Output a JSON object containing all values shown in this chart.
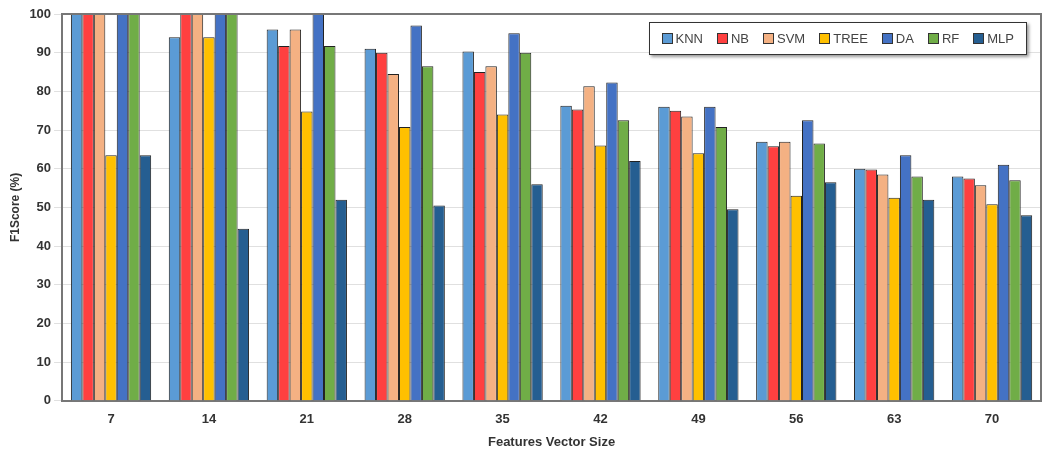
{
  "chart_data": {
    "type": "bar",
    "xlabel": "Features Vector Size",
    "ylabel": "F1Score (%)",
    "categories": [
      "7",
      "14",
      "21",
      "28",
      "35",
      "42",
      "49",
      "56",
      "63",
      "70"
    ],
    "ylim": [
      0,
      100
    ],
    "yticks": [
      0,
      10,
      20,
      30,
      40,
      50,
      60,
      70,
      80,
      90,
      100
    ],
    "grid": "y",
    "legend": "top right",
    "series": [
      {
        "name": "KNN",
        "color": "#5b9bd5",
        "values": [
          100,
          94,
          96,
          91,
          90.3,
          76.3,
          76,
          67,
          60,
          58
        ]
      },
      {
        "name": "NB",
        "color": "#ff4040",
        "values": [
          100,
          100,
          91.7,
          90,
          85,
          75.3,
          75,
          65.8,
          59.8,
          57.5
        ]
      },
      {
        "name": "SVM",
        "color": "#f4b183",
        "values": [
          100,
          100,
          96,
          84.5,
          86.5,
          81.3,
          73.5,
          67,
          58.5,
          55.7
        ]
      },
      {
        "name": "TREE",
        "color": "#ffc000",
        "values": [
          63.5,
          94,
          74.8,
          70.8,
          74,
          66,
          64,
          53,
          52.5,
          50.8
        ]
      },
      {
        "name": "DA",
        "color": "#4472c4",
        "values": [
          100,
          100,
          100,
          97,
          95,
          82.3,
          76,
          72.5,
          63.5,
          61
        ]
      },
      {
        "name": "RF",
        "color": "#70ad47",
        "values": [
          100,
          100,
          91.7,
          86.5,
          90,
          72.5,
          70.8,
          66.5,
          58,
          57
        ]
      },
      {
        "name": "MLP",
        "color": "#255e91",
        "values": [
          63.5,
          44.5,
          52,
          50.5,
          56,
          62,
          49.5,
          56.5,
          52,
          48
        ]
      }
    ]
  }
}
